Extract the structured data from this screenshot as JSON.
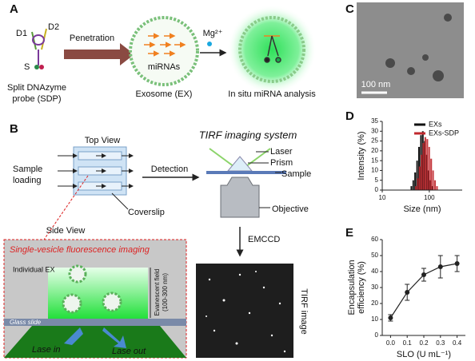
{
  "figure": {
    "a": {
      "letter": "A",
      "d1": "D1",
      "d2": "D2",
      "s": "S",
      "sdp": [
        "Split DNAzyme",
        "probe (SDP)"
      ],
      "penetration": "Penetration",
      "mirnas": "miRNAs",
      "exosome": "Exosome (EX)",
      "mg": "Mg²⁺",
      "analysis": "In situ miRNA analysis"
    },
    "b": {
      "letter": "B",
      "top_view": "Top View",
      "sample_loading": [
        "Sample",
        "loading"
      ],
      "coverslip": "Coverslip",
      "detection": "Detection",
      "tirf_system": "TIRF imaging system",
      "laser": "Laser",
      "prism": "Prism",
      "sample": "Sample",
      "objective": "Objective",
      "side_view": "Side View",
      "emccd": "EMCCD",
      "svfi": "Single-vesicle fluorescence imaging",
      "individual_ex": "Individual EX",
      "evanescent": [
        "Evanescent field",
        "(100-300 nm)"
      ],
      "glass_slide": "Glass slide",
      "lase_in": "Lase in",
      "lase_out": "Lase out",
      "tirf_image": "TIRF image"
    },
    "c": {
      "letter": "C",
      "scale": "100 nm"
    },
    "d": {
      "letter": "D"
    },
    "e": {
      "letter": "E"
    }
  },
  "chart_data": [
    {
      "type": "histogram",
      "xlabel": "Size (nm)",
      "ylabel": "Intensity (%)",
      "xscale": "log",
      "xlim": [
        10,
        500
      ],
      "xticks": [
        10,
        100
      ],
      "ylim": [
        0,
        35
      ],
      "yticks": [
        0,
        5,
        10,
        15,
        20,
        25,
        30,
        35
      ],
      "legend": "upper right",
      "series": [
        {
          "name": "EXs",
          "color": "#111111",
          "bins": [
            40,
            44,
            48,
            53,
            58,
            64,
            70,
            77,
            85,
            93,
            102,
            112,
            123
          ],
          "values": [
            2,
            5,
            9,
            15,
            22,
            28,
            30,
            25,
            18,
            10,
            5,
            2
          ]
        },
        {
          "name": "EXs-SDP",
          "color": "#c0282d",
          "bins": [
            50,
            55,
            60,
            66,
            72,
            79,
            87,
            96,
            105,
            116,
            127,
            140,
            154
          ],
          "values": [
            2,
            6,
            12,
            18,
            24,
            27,
            26,
            22,
            16,
            10,
            5,
            2
          ]
        }
      ]
    },
    {
      "type": "line",
      "xlabel": "SLO (U mL⁻¹)",
      "ylabel": [
        "Encapsulation",
        "efficiency (%)"
      ],
      "xlim": [
        -0.05,
        0.45
      ],
      "xticks": [
        {
          "value": 0,
          "label": "0.0"
        },
        0.1,
        0.2,
        0.3,
        0.4
      ],
      "ylim": [
        0,
        60
      ],
      "yticks": [
        0,
        10,
        20,
        30,
        40,
        50,
        60
      ],
      "x": [
        0,
        0.1,
        0.2,
        0.3,
        0.4
      ],
      "values": [
        11,
        27,
        38,
        43,
        45
      ],
      "errors": [
        2,
        5,
        4,
        7,
        5
      ],
      "color": "#222222"
    }
  ]
}
